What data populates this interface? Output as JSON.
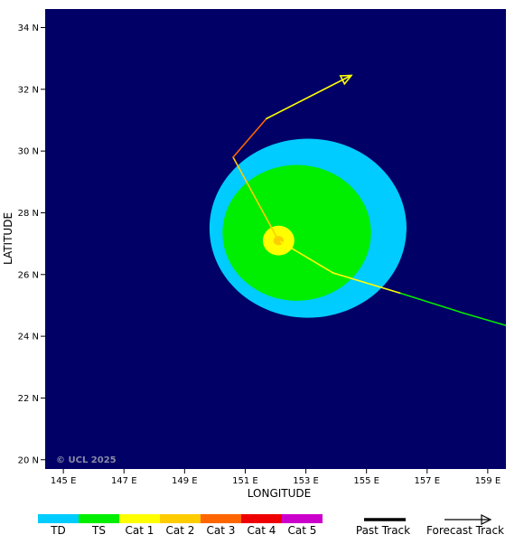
{
  "map": {
    "ocean_color": "#000066",
    "lon_range": [
      144.4,
      159.6
    ],
    "lat_range": [
      19.7,
      34.6
    ],
    "lon_ticks": [
      {
        "value": 145,
        "label": "145 E"
      },
      {
        "value": 147,
        "label": "147 E"
      },
      {
        "value": 149,
        "label": "149 E"
      },
      {
        "value": 151,
        "label": "151 E"
      },
      {
        "value": 153,
        "label": "153 E"
      },
      {
        "value": 155,
        "label": "155 E"
      },
      {
        "value": 157,
        "label": "157 E"
      },
      {
        "value": 159,
        "label": "159 E"
      }
    ],
    "lat_ticks": [
      {
        "value": 20,
        "label": "20 N"
      },
      {
        "value": 22,
        "label": "22 N"
      },
      {
        "value": 24,
        "label": "24 N"
      },
      {
        "value": 26,
        "label": "26 N"
      },
      {
        "value": 28,
        "label": "28 N"
      },
      {
        "value": 30,
        "label": "30 N"
      },
      {
        "value": 32,
        "label": "32 N"
      },
      {
        "value": 34,
        "label": "34 N"
      }
    ],
    "xlabel": "LONGITUDE",
    "ylabel": "LATITUDE",
    "copyright": "© UCL 2025"
  },
  "wind_fields": [
    {
      "name": "TD",
      "center": [
        153.07,
        27.5
      ],
      "radius_lon": 3.25,
      "radius_lat": 2.9,
      "color": "#00ccff"
    },
    {
      "name": "TS",
      "center": [
        152.7,
        27.35
      ],
      "radius_lon": 2.45,
      "radius_lat": 2.2,
      "color": "#00ee00"
    },
    {
      "name": "Cat 1",
      "center": [
        152.1,
        27.1
      ],
      "radius_lon": 0.52,
      "radius_lat": 0.48,
      "color": "#ffff00"
    },
    {
      "name": "Cat 2",
      "center": [
        152.1,
        27.1
      ],
      "radius_lon": 0.17,
      "radius_lat": 0.15,
      "color": "#ffcc00"
    }
  ],
  "track": [
    {
      "lon": 159.6,
      "lat": 24.35,
      "cat": "TS",
      "color": "#00ee00"
    },
    {
      "lon": 158.2,
      "lat": 24.75,
      "cat": "TS",
      "color": "#00ee00"
    },
    {
      "lon": 156.1,
      "lat": 25.4,
      "cat": "Cat 1",
      "color": "#00ee00"
    },
    {
      "lon": 153.9,
      "lat": 26.05,
      "cat": "Cat 1",
      "color": "#ffff00"
    },
    {
      "lon": 152.1,
      "lat": 27.1,
      "cat": "Cat 2",
      "color": "#ffff00"
    },
    {
      "lon": 150.6,
      "lat": 29.8,
      "cat": "Cat 2",
      "color": "#ffcc00"
    },
    {
      "lon": 151.7,
      "lat": 31.05,
      "cat": "Cat 3",
      "color": "#ff6600"
    },
    {
      "lon": 154.5,
      "lat": 32.45,
      "cat": "Cat 1",
      "color": "#ffff00"
    }
  ],
  "legend": {
    "categories": [
      {
        "label": "TD",
        "color": "#00ccff"
      },
      {
        "label": "TS",
        "color": "#00ee00"
      },
      {
        "label": "Cat 1",
        "color": "#ffff00"
      },
      {
        "label": "Cat 2",
        "color": "#ffcc00"
      },
      {
        "label": "Cat 3",
        "color": "#ff6600"
      },
      {
        "label": "Cat 4",
        "color": "#ee0000"
      },
      {
        "label": "Cat 5",
        "color": "#cc00cc"
      }
    ],
    "past_track_label": "Past Track",
    "forecast_track_label": "Forecast Track"
  }
}
